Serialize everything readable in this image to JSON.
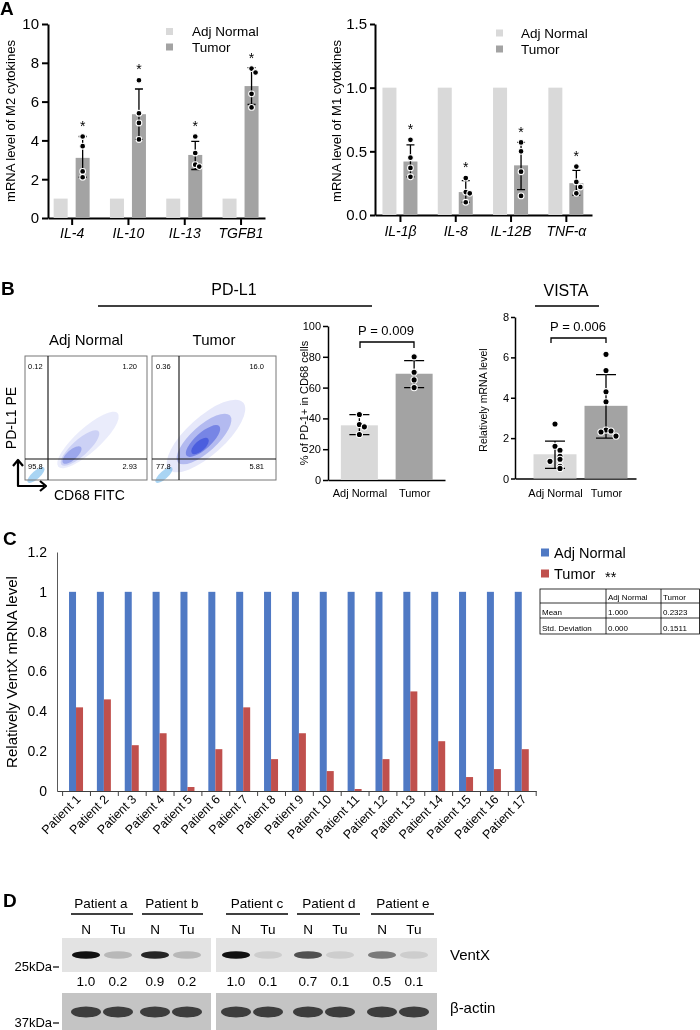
{
  "chart_data": [
    {
      "type": "bar",
      "categories": [
        "IL-4",
        "IL-10",
        "IL-13",
        "TGFB1"
      ],
      "ylabel": "mRNA level of M2 cytokines",
      "ylim": [
        0,
        10
      ],
      "yticks": [
        0,
        2,
        4,
        6,
        8,
        10
      ],
      "legend": "top right",
      "marker": "circle",
      "series": [
        {
          "name": "Adj Normal",
          "color": "#d9d9d9",
          "values": [
            1,
            1,
            1,
            1
          ]
        },
        {
          "name": "Tumor",
          "color": "#a3a3a3",
          "values": [
            3.1,
            5.35,
            3.25,
            6.8
          ],
          "errors": [
            [
              2.1,
              4.2
            ],
            [
              4.05,
              6.65
            ],
            [
              2.5,
              3.95
            ],
            [
              5.85,
              7.75
            ]
          ]
        },
        {
          "type": "scatter",
          "color": "#000000",
          "x": [
            "IL-4",
            "IL-4",
            "IL-4",
            "IL-4",
            "IL-10",
            "IL-10",
            "IL-10",
            "IL-10",
            "IL-13",
            "IL-13",
            "IL-13",
            "IL-13",
            "TGFB1",
            "TGFB1",
            "TGFB1",
            "TGFB1"
          ],
          "values": [
            4.2,
            3.7,
            2.4,
            2.1,
            7.1,
            5.4,
            4.9,
            4.05,
            4.2,
            3.35,
            2.75,
            2.65,
            7.7,
            7.5,
            6.4,
            5.7
          ]
        }
      ],
      "annotations": [
        "A",
        "*",
        "*",
        "*",
        "*"
      ]
    },
    {
      "type": "bar",
      "categories": [
        "IL-1β",
        "IL-8",
        "IL-12B",
        "TNF-α"
      ],
      "ylabel": "mRNA level of M1 cytokines",
      "ylim": [
        0,
        1.5
      ],
      "yticks": [
        {
          "value": 0,
          "label": "0.0"
        },
        0.5,
        {
          "value": 1,
          "label": "1.0"
        },
        1.5
      ],
      "legend": "top right",
      "marker": "circle",
      "series": [
        {
          "name": "Adj Normal",
          "color": "#d9d9d9",
          "values": [
            1,
            1,
            1,
            1
          ]
        },
        {
          "name": "Tumor",
          "color": "#a3a3a3",
          "values": [
            0.42,
            0.18,
            0.39,
            0.25
          ],
          "errors": [
            [
              0.3,
              0.55
            ],
            [
              0.1,
              0.27
            ],
            [
              0.2,
              0.57
            ],
            [
              0.155,
              0.35
            ]
          ]
        },
        {
          "type": "scatter",
          "color": "#000000",
          "x": [
            "IL-1β",
            "IL-1β",
            "IL-1β",
            "IL-1β",
            "IL-8",
            "IL-8",
            "IL-8",
            "IL-8",
            "IL-12B",
            "IL-12B",
            "IL-12B",
            "IL-12B",
            "TNF-α",
            "TNF-α",
            "TNF-α",
            "TNF-α"
          ],
          "values": [
            0.59,
            0.45,
            0.37,
            0.3,
            0.29,
            0.18,
            0.17,
            0.1,
            0.57,
            0.5,
            0.34,
            0.15,
            0.38,
            0.26,
            0.22,
            0.17
          ]
        }
      ],
      "annotations": [
        "*",
        "*",
        "*",
        "*"
      ]
    },
    {
      "type": "other",
      "title": "PD-L1",
      "categories": [
        "Adj Normal",
        "Tumor"
      ],
      "xlabel": "CD68 FITC",
      "ylabel": "PD-L1 PE",
      "annotations": [
        "B",
        "0.12",
        "1.20",
        "95.8",
        "2.93",
        "0.36",
        "16.0",
        "77.8",
        "5.81"
      ]
    },
    {
      "type": "bar",
      "categories": [
        "Adj Normal",
        "Tumor"
      ],
      "ylabel": "% of PD-1+ in CD68 cells",
      "ylim": [
        0,
        100
      ],
      "yticks": [
        0,
        20,
        40,
        60,
        80,
        100
      ],
      "marker": "circle",
      "series": [
        {
          "values": [
            35.5,
            69
          ],
          "colors": [
            "#d9d9d9",
            "#a3a3a3"
          ],
          "errors": [
            [
              29.5,
              42.5
            ],
            [
              60,
              77.5
            ]
          ]
        },
        {
          "type": "scatter",
          "color": "#000000",
          "x": [
            "Adj Normal",
            "Adj Normal",
            "Adj Normal",
            "Adj Normal",
            "Tumor",
            "Tumor",
            "Tumor",
            "Tumor"
          ],
          "values": [
            42.5,
            36,
            34.5,
            29.5,
            80,
            70,
            65,
            60
          ]
        }
      ],
      "annotations": [
        "P = 0.009"
      ]
    },
    {
      "type": "bar",
      "title": "VISTA",
      "categories": [
        "Adj Normal",
        "Tumor"
      ],
      "ylabel": "Relatively mRNA level",
      "ylim": [
        0,
        8
      ],
      "yticks": [
        0,
        2,
        4,
        6,
        8
      ],
      "marker": "circle",
      "series": [
        {
          "values": [
            1.2,
            3.6
          ],
          "colors": [
            "#d9d9d9",
            "#a3a3a3"
          ],
          "errors": [
            [
              0.5,
              1.85
            ],
            [
              2.0,
              5.15
            ]
          ]
        },
        {
          "type": "scatter",
          "color": "#000000",
          "x": [
            "Adj Normal",
            "Adj Normal",
            "Adj Normal",
            "Adj Normal",
            "Adj Normal",
            "Adj Normal",
            "Adj Normal",
            "Adj Normal",
            "Tumor",
            "Tumor",
            "Tumor",
            "Tumor",
            "Tumor",
            "Tumor",
            "Tumor",
            "Tumor"
          ],
          "values": [
            2.7,
            1.6,
            1.4,
            1.1,
            0.95,
            0.85,
            0.6,
            0.5,
            6.15,
            5.35,
            4.3,
            3.8,
            2.4,
            2.35,
            2.3,
            2.1
          ]
        }
      ],
      "annotations": [
        "P = 0.006"
      ]
    },
    {
      "type": "bar",
      "categories": [
        "Patient 1",
        "Patient 2",
        "Patient 3",
        "Patient 4",
        "Patient 5",
        "Patient 6",
        "Patient 7",
        "Patient 8",
        "Patient 9",
        "Patient 10",
        "Patient 11",
        "Patient 12",
        "Patient 13",
        "Patient 14",
        "Patient 15",
        "Patient 16",
        "Patient 17"
      ],
      "ylabel": "Relatively VentX mRNA level",
      "ylim": [
        0,
        1.2
      ],
      "yticks": [
        0,
        0.2,
        0.4,
        0.6,
        0.8,
        1,
        1.2
      ],
      "legend": "right",
      "series": [
        {
          "name": "Adj Normal",
          "color": "#4f79c4",
          "values": [
            1,
            1,
            1,
            1,
            1,
            1,
            1,
            1,
            1,
            1,
            1,
            1,
            1,
            1,
            1,
            1,
            1
          ]
        },
        {
          "name": "Tumor",
          "color": "#c0504d",
          "values": [
            0.42,
            0.46,
            0.23,
            0.29,
            0.02,
            0.21,
            0.42,
            0.16,
            0.29,
            0.1,
            0.01,
            0.16,
            0.5,
            0.25,
            0.07,
            0.11,
            0.21
          ]
        }
      ],
      "annotations": [
        "C",
        "**"
      ]
    },
    {
      "type": "other",
      "categories": [
        "Adj Normal",
        "Tumor"
      ],
      "y_categories": [
        "Mean",
        "Std. Deviation"
      ],
      "annotations": [
        "1.000",
        "0.2323",
        "0.000",
        "0.1511"
      ]
    },
    {
      "type": "other",
      "categories": [
        "N",
        "Tu",
        "N",
        "Tu",
        "N",
        "Tu",
        "N",
        "Tu",
        "N",
        "Tu"
      ],
      "values": [
        1.0,
        0.2,
        0.9,
        0.2,
        1.0,
        0.1,
        0.7,
        0.1,
        0.5,
        0.1
      ],
      "value_labels": [
        "1.0",
        "0.2",
        "0.9",
        "0.2",
        "1.0",
        "0.1",
        "0.7",
        "0.1",
        "0.5",
        "0.1"
      ],
      "y_categories": [
        "25kDa",
        "37kDa"
      ],
      "y2_categories": [
        "VentX",
        "β-actin"
      ],
      "annotations": [
        "D",
        "Patient a",
        "Patient b",
        "Patient c",
        "Patient d",
        "Patient e"
      ]
    }
  ]
}
